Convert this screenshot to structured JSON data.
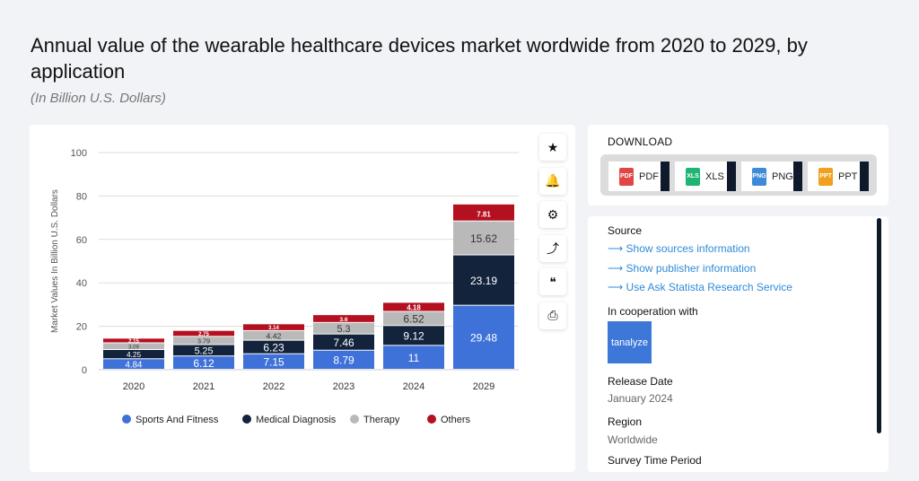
{
  "header": {
    "title": "Annual value of the wearable healthcare devices market wordwide from 2020 to 2029, by application",
    "subtitle": "(In Billion U.S. Dollars)"
  },
  "chart_data": {
    "type": "bar",
    "stacked": true,
    "categories": [
      "2020",
      "2021",
      "2022",
      "2023",
      "2024",
      "2029"
    ],
    "ylabel": "Market Values In Billion U.S. Dollars",
    "xlabel": "",
    "ylim": [
      0,
      100
    ],
    "yticks": [
      0,
      20,
      40,
      60,
      80,
      100
    ],
    "grid": true,
    "legend": "bottom",
    "series": [
      {
        "name": "Sports And Fitness",
        "color": "#3f72d9",
        "values": [
          4.84,
          6.12,
          7.15,
          8.79,
          11,
          29.48
        ]
      },
      {
        "name": "Medical Diagnosis",
        "color": "#12233b",
        "values": [
          4.25,
          5.25,
          6.23,
          7.46,
          9.12,
          23.19
        ]
      },
      {
        "name": "Therapy",
        "color": "#b9b9b9",
        "values": [
          3.09,
          3.79,
          4.42,
          5.3,
          6.52,
          15.62
        ]
      },
      {
        "name": "Others",
        "color": "#b5101f",
        "values": [
          2.15,
          2.75,
          3.14,
          3.6,
          4.18,
          7.81
        ]
      }
    ]
  },
  "toolbar": {
    "icons": [
      "star-icon",
      "bell-icon",
      "gear-icon",
      "share-icon",
      "quote-icon",
      "print-icon"
    ],
    "glyphs": [
      "★",
      "🔔",
      "⚙",
      "⤴",
      "❝",
      "⎙"
    ]
  },
  "download": {
    "title": "DOWNLOAD",
    "buttons": [
      {
        "label": "PDF",
        "icon": "PDF",
        "color": "#e04646"
      },
      {
        "label": "XLS",
        "icon": "XLS",
        "color": "#1fb374"
      },
      {
        "label": "PNG",
        "icon": "PNG",
        "color": "#3d8bd8"
      },
      {
        "label": "PPT",
        "icon": "PPT",
        "color": "#f0a01f"
      }
    ]
  },
  "info": {
    "source_label": "Source",
    "links": [
      "⟶ Show sources information",
      "⟶ Show publisher information",
      "⟶ Use Ask Statista Research Service"
    ],
    "coop_label": "In cooperation with",
    "coop_name": "tanalyze",
    "release_label": "Release Date",
    "release_value": "January 2024",
    "region_label": "Region",
    "region_value": "Worldwide",
    "period_label": "Survey Time Period"
  }
}
